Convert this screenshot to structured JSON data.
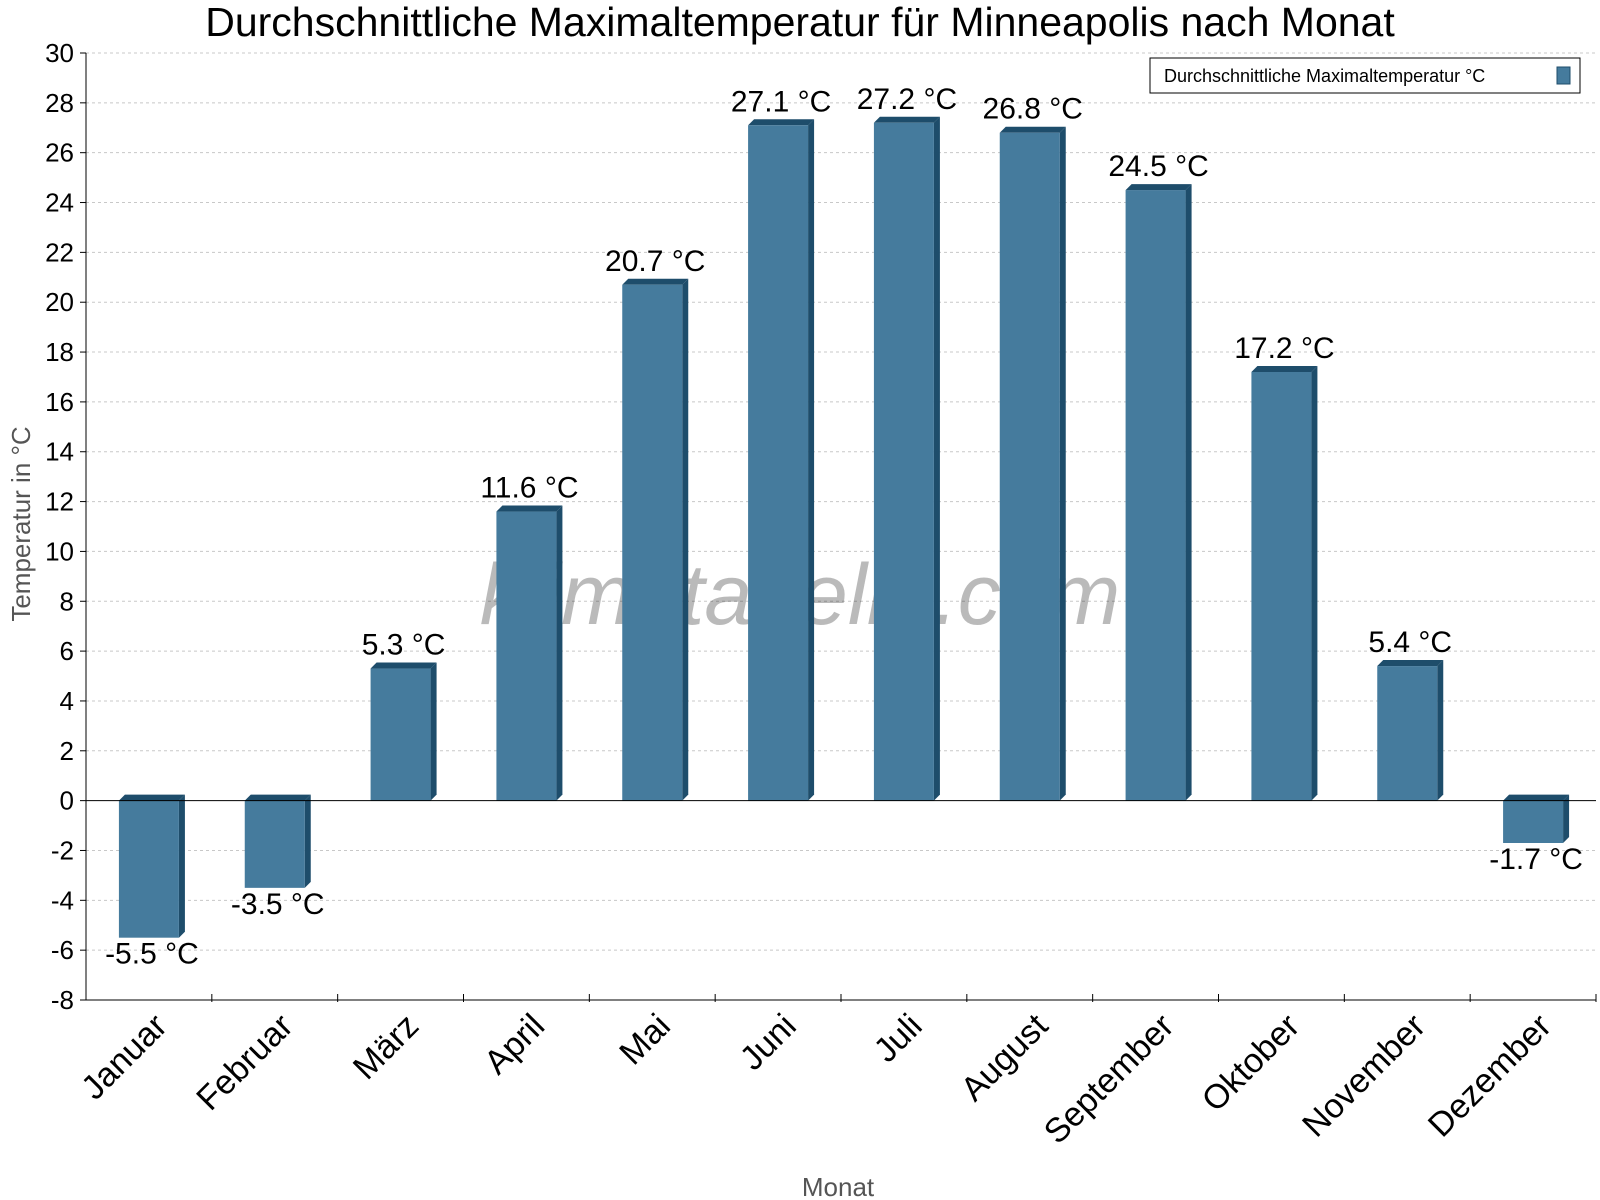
{
  "chart_data": {
    "type": "bar",
    "title": "Durchschnittliche Maximaltemperatur für Minneapolis nach Monat",
    "xlabel": "Monat",
    "ylabel": "Temperatur in °C",
    "categories": [
      "Januar",
      "Februar",
      "März",
      "April",
      "Mai",
      "Juni",
      "Juli",
      "August",
      "September",
      "Oktober",
      "November",
      "Dezember"
    ],
    "series": [
      {
        "name": "Durchschnittliche Maximaltemperatur °C",
        "values": [
          -5.5,
          -3.5,
          5.3,
          11.6,
          20.7,
          27.1,
          27.2,
          26.8,
          24.5,
          17.2,
          5.4,
          -1.7
        ],
        "data_labels": [
          "-5.5 °C",
          "-3.5 °C",
          "5.3 °C",
          "11.6 °C",
          "20.7 °C",
          "27.1 °C",
          "27.2 °C",
          "26.8 °C",
          "24.5 °C",
          "17.2 °C",
          "5.4 °C",
          "-1.7 °C"
        ]
      }
    ],
    "ylim": [
      -8,
      30
    ],
    "yticks": [
      -8,
      -6,
      -4,
      -2,
      0,
      2,
      4,
      6,
      8,
      10,
      12,
      14,
      16,
      18,
      20,
      22,
      24,
      26,
      28,
      30
    ],
    "grid": true,
    "legend_position": "top-right",
    "watermark": "klimatabelle.com",
    "colors": {
      "bar": "#457b9d",
      "bar_dark": "#1e4d6b",
      "axis": "#000000"
    }
  }
}
